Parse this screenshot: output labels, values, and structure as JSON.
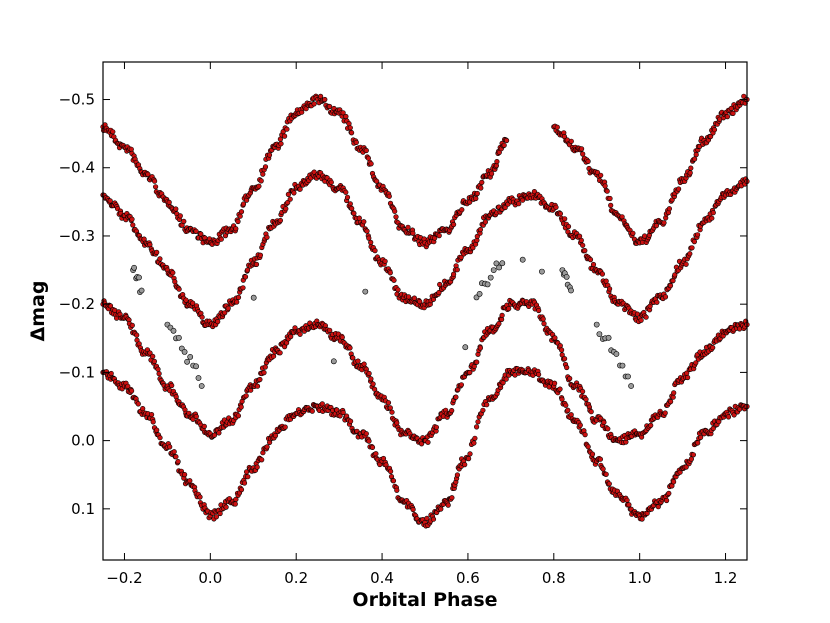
{
  "chart_data": {
    "type": "scatter",
    "title": "",
    "xlabel": "Orbital Phase",
    "ylabel": "Δmag",
    "xlim": [
      -0.25,
      1.25
    ],
    "ylim": [
      0.175,
      -0.555
    ],
    "y_inverted": true,
    "grid": false,
    "legend": "none",
    "x_ticks": [
      -0.2,
      0.0,
      0.2,
      0.4,
      0.6,
      0.8,
      1.0,
      1.2
    ],
    "x_tick_labels": [
      "−0.2",
      "0.0",
      "0.2",
      "0.4",
      "0.6",
      "0.8",
      "1.0",
      "1.2"
    ],
    "y_ticks": [
      -0.5,
      -0.4,
      -0.3,
      -0.2,
      -0.1,
      0.0,
      0.1
    ],
    "y_tick_labels": [
      "−0.5",
      "−0.4",
      "−0.3",
      "−0.2",
      "−0.1",
      "0.0",
      "0.1"
    ],
    "colors": {
      "main_points": "#cc1111",
      "outlier_points": "#9a9a9a",
      "point_edge": "#000000"
    },
    "series": [
      {
        "color": "#cc1111",
        "x": [
          -0.25,
          -0.2,
          -0.15,
          -0.1,
          -0.05,
          0.0,
          0.05,
          0.1,
          0.15,
          0.2,
          0.25,
          0.3,
          0.35,
          0.4,
          0.45,
          0.5,
          0.55,
          0.6,
          0.65,
          0.69,
          0.8,
          0.85,
          0.9,
          0.95,
          1.0,
          1.05,
          1.1,
          1.15,
          1.2,
          1.25
        ],
        "values": [
          -0.46,
          -0.43,
          -0.39,
          -0.35,
          -0.31,
          -0.29,
          -0.31,
          -0.37,
          -0.43,
          -0.48,
          -0.5,
          -0.48,
          -0.43,
          -0.37,
          -0.31,
          -0.29,
          -0.31,
          -0.35,
          -0.39,
          -0.44,
          -0.46,
          -0.43,
          -0.39,
          -0.33,
          -0.29,
          -0.32,
          -0.38,
          -0.44,
          -0.48,
          -0.5
        ]
      },
      {
        "color": "#cc1111",
        "x": [
          -0.25,
          -0.2,
          -0.15,
          -0.1,
          -0.05,
          0.0,
          0.05,
          0.1,
          0.15,
          0.2,
          0.25,
          0.3,
          0.35,
          0.4,
          0.45,
          0.5,
          0.55,
          0.6,
          0.65,
          0.7,
          0.75,
          0.8,
          0.85,
          0.9,
          0.95,
          1.0,
          1.05,
          1.1,
          1.15,
          1.2,
          1.25
        ],
        "values": [
          -0.36,
          -0.33,
          -0.29,
          -0.25,
          -0.2,
          -0.17,
          -0.2,
          -0.26,
          -0.32,
          -0.37,
          -0.39,
          -0.37,
          -0.32,
          -0.26,
          -0.21,
          -0.2,
          -0.23,
          -0.28,
          -0.33,
          -0.35,
          -0.36,
          -0.34,
          -0.3,
          -0.25,
          -0.2,
          -0.18,
          -0.21,
          -0.26,
          -0.32,
          -0.36,
          -0.38
        ]
      },
      {
        "color": "#cc1111",
        "x": [
          -0.25,
          -0.2,
          -0.15,
          -0.1,
          -0.05,
          0.0,
          0.05,
          0.1,
          0.15,
          0.2,
          0.25,
          0.3,
          0.35,
          0.4,
          0.45,
          0.5,
          0.55,
          0.6,
          0.65,
          0.7,
          0.75,
          0.8,
          0.85,
          0.9,
          0.95,
          1.0,
          1.05,
          1.1,
          1.15,
          1.2,
          1.25
        ],
        "values": [
          -0.2,
          -0.18,
          -0.13,
          -0.08,
          -0.04,
          -0.01,
          -0.03,
          -0.08,
          -0.13,
          -0.16,
          -0.17,
          -0.15,
          -0.11,
          -0.06,
          -0.01,
          0.0,
          -0.04,
          -0.1,
          -0.16,
          -0.2,
          -0.2,
          -0.15,
          -0.08,
          -0.03,
          0.0,
          -0.01,
          -0.04,
          -0.09,
          -0.13,
          -0.16,
          -0.17
        ]
      },
      {
        "color": "#cc1111",
        "x": [
          -0.25,
          -0.2,
          -0.15,
          -0.1,
          -0.05,
          0.0,
          0.05,
          0.1,
          0.15,
          0.2,
          0.25,
          0.3,
          0.35,
          0.4,
          0.45,
          0.5,
          0.55,
          0.59,
          0.65,
          0.7,
          0.75,
          0.8,
          0.85,
          0.9,
          0.95,
          1.0,
          1.05,
          1.1,
          1.15,
          1.2,
          1.25
        ],
        "values": [
          -0.1,
          -0.08,
          -0.04,
          0.01,
          0.06,
          0.11,
          0.09,
          0.04,
          -0.01,
          -0.04,
          -0.05,
          -0.04,
          -0.01,
          0.03,
          0.09,
          0.12,
          0.09,
          0.03,
          -0.06,
          -0.1,
          -0.1,
          -0.08,
          -0.03,
          0.03,
          0.08,
          0.11,
          0.09,
          0.04,
          -0.01,
          -0.04,
          -0.05
        ]
      },
      {
        "color": "#9a9a9a",
        "x": [
          -0.18,
          -0.17,
          -0.16,
          0.62,
          0.64,
          0.66,
          0.68,
          0.82,
          0.83,
          0.84
        ],
        "values": [
          -0.25,
          -0.24,
          -0.22,
          -0.21,
          -0.23,
          -0.25,
          -0.26,
          -0.25,
          -0.24,
          -0.22
        ]
      },
      {
        "color": "#9a9a9a",
        "x": [
          -0.1,
          -0.08,
          -0.06,
          -0.04,
          -0.02,
          0.9,
          0.92,
          0.94,
          0.96,
          0.98
        ],
        "values": [
          -0.17,
          -0.15,
          -0.13,
          -0.11,
          -0.08,
          -0.17,
          -0.15,
          -0.13,
          -0.11,
          -0.08
        ]
      }
    ]
  }
}
